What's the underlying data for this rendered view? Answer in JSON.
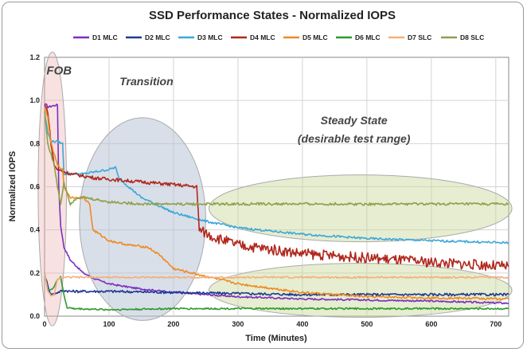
{
  "chart_data": {
    "type": "line",
    "title": "SSD Performance States - Normalized IOPS",
    "xlabel": "Time (Minutes)",
    "ylabel": "Normalized IOPS",
    "xlim": [
      0,
      720
    ],
    "ylim": [
      0,
      1.2
    ],
    "x_ticks": [
      "0",
      "100",
      "200",
      "300",
      "400",
      "500",
      "600",
      "700"
    ],
    "y_ticks": [
      "0.0",
      "0.2",
      "0.4",
      "0.6",
      "0.8",
      "1.0",
      "1.2"
    ],
    "legend_position": "top",
    "series": [
      {
        "name": "D1 MLC",
        "color": "#7b2fbe",
        "noise": 0.004,
        "x": [
          0,
          3,
          5,
          20,
          22,
          25,
          30,
          40,
          60,
          80,
          100,
          140,
          200,
          300,
          400,
          500,
          600,
          720
        ],
        "y": [
          0.98,
          0.98,
          0.97,
          0.98,
          0.6,
          0.42,
          0.32,
          0.26,
          0.2,
          0.17,
          0.15,
          0.13,
          0.11,
          0.09,
          0.08,
          0.075,
          0.07,
          0.06
        ]
      },
      {
        "name": "D2 MLC",
        "color": "#1f3a93",
        "noise": 0.006,
        "x": [
          0,
          5,
          10,
          20,
          30,
          40,
          100,
          200,
          300,
          400,
          500,
          600,
          720
        ],
        "y": [
          0.2,
          0.14,
          0.1,
          0.11,
          0.12,
          0.115,
          0.115,
          0.11,
          0.105,
          0.1,
          0.1,
          0.1,
          0.1
        ]
      },
      {
        "name": "D3 MLC",
        "color": "#3ba8d8",
        "noise": 0.005,
        "x": [
          0,
          5,
          10,
          20,
          28,
          30,
          40,
          60,
          80,
          100,
          110,
          115,
          150,
          200,
          250,
          300,
          400,
          500,
          600,
          720
        ],
        "y": [
          0.95,
          0.85,
          0.81,
          0.81,
          0.8,
          0.66,
          0.66,
          0.66,
          0.67,
          0.68,
          0.69,
          0.64,
          0.55,
          0.48,
          0.44,
          0.41,
          0.38,
          0.36,
          0.35,
          0.34
        ]
      },
      {
        "name": "D4 MLC",
        "color": "#b0271c",
        "noise": 0.008,
        "x": [
          0,
          5,
          10,
          15,
          20,
          40,
          80,
          120,
          160,
          200,
          236,
          240,
          260,
          300,
          400,
          500,
          600,
          720
        ],
        "y": [
          0.98,
          0.95,
          0.8,
          0.7,
          0.68,
          0.66,
          0.64,
          0.63,
          0.62,
          0.61,
          0.6,
          0.4,
          0.37,
          0.33,
          0.29,
          0.27,
          0.25,
          0.23
        ]
      },
      {
        "name": "D5 MLC",
        "color": "#ee8a22",
        "noise": 0.005,
        "x": [
          0,
          5,
          10,
          20,
          28,
          30,
          40,
          60,
          70,
          75,
          100,
          130,
          160,
          180,
          200,
          300,
          400,
          500,
          600,
          720
        ],
        "y": [
          0.97,
          0.92,
          0.8,
          0.7,
          0.68,
          0.6,
          0.55,
          0.55,
          0.52,
          0.4,
          0.35,
          0.33,
          0.32,
          0.28,
          0.22,
          0.15,
          0.11,
          0.09,
          0.085,
          0.08
        ]
      },
      {
        "name": "D6 MLC",
        "color": "#2e9a2e",
        "noise": 0.004,
        "x": [
          0,
          5,
          10,
          15,
          20,
          25,
          30,
          35,
          45,
          100,
          200,
          300,
          400,
          500,
          600,
          720
        ],
        "y": [
          0.2,
          0.12,
          0.12,
          0.14,
          0.17,
          0.18,
          0.1,
          0.04,
          0.035,
          0.03,
          0.035,
          0.035,
          0.035,
          0.035,
          0.035,
          0.035
        ]
      },
      {
        "name": "D7 SLC",
        "color": "#f2b07a",
        "noise": 0.004,
        "x": [
          0,
          5,
          10,
          15,
          20,
          30,
          100,
          200,
          300,
          400,
          500,
          600,
          720
        ],
        "y": [
          0.2,
          0.12,
          0.09,
          0.1,
          0.17,
          0.18,
          0.18,
          0.18,
          0.18,
          0.18,
          0.18,
          0.18,
          0.18
        ]
      },
      {
        "name": "D8 SLC",
        "color": "#8ea04a",
        "noise": 0.006,
        "x": [
          0,
          5,
          10,
          15,
          20,
          25,
          30,
          40,
          50,
          60,
          100,
          150,
          200,
          300,
          400,
          500,
          600,
          720
        ],
        "y": [
          0.95,
          0.8,
          0.75,
          0.7,
          0.6,
          0.52,
          0.62,
          0.52,
          0.55,
          0.55,
          0.53,
          0.52,
          0.52,
          0.52,
          0.52,
          0.52,
          0.52,
          0.52
        ]
      }
    ],
    "annotations": [
      {
        "id": "fob",
        "lines": [
          "FOB"
        ]
      },
      {
        "id": "transition",
        "lines": [
          "Transition"
        ]
      },
      {
        "id": "steady",
        "lines": [
          "Steady State",
          "(desirable test range)"
        ]
      }
    ]
  }
}
